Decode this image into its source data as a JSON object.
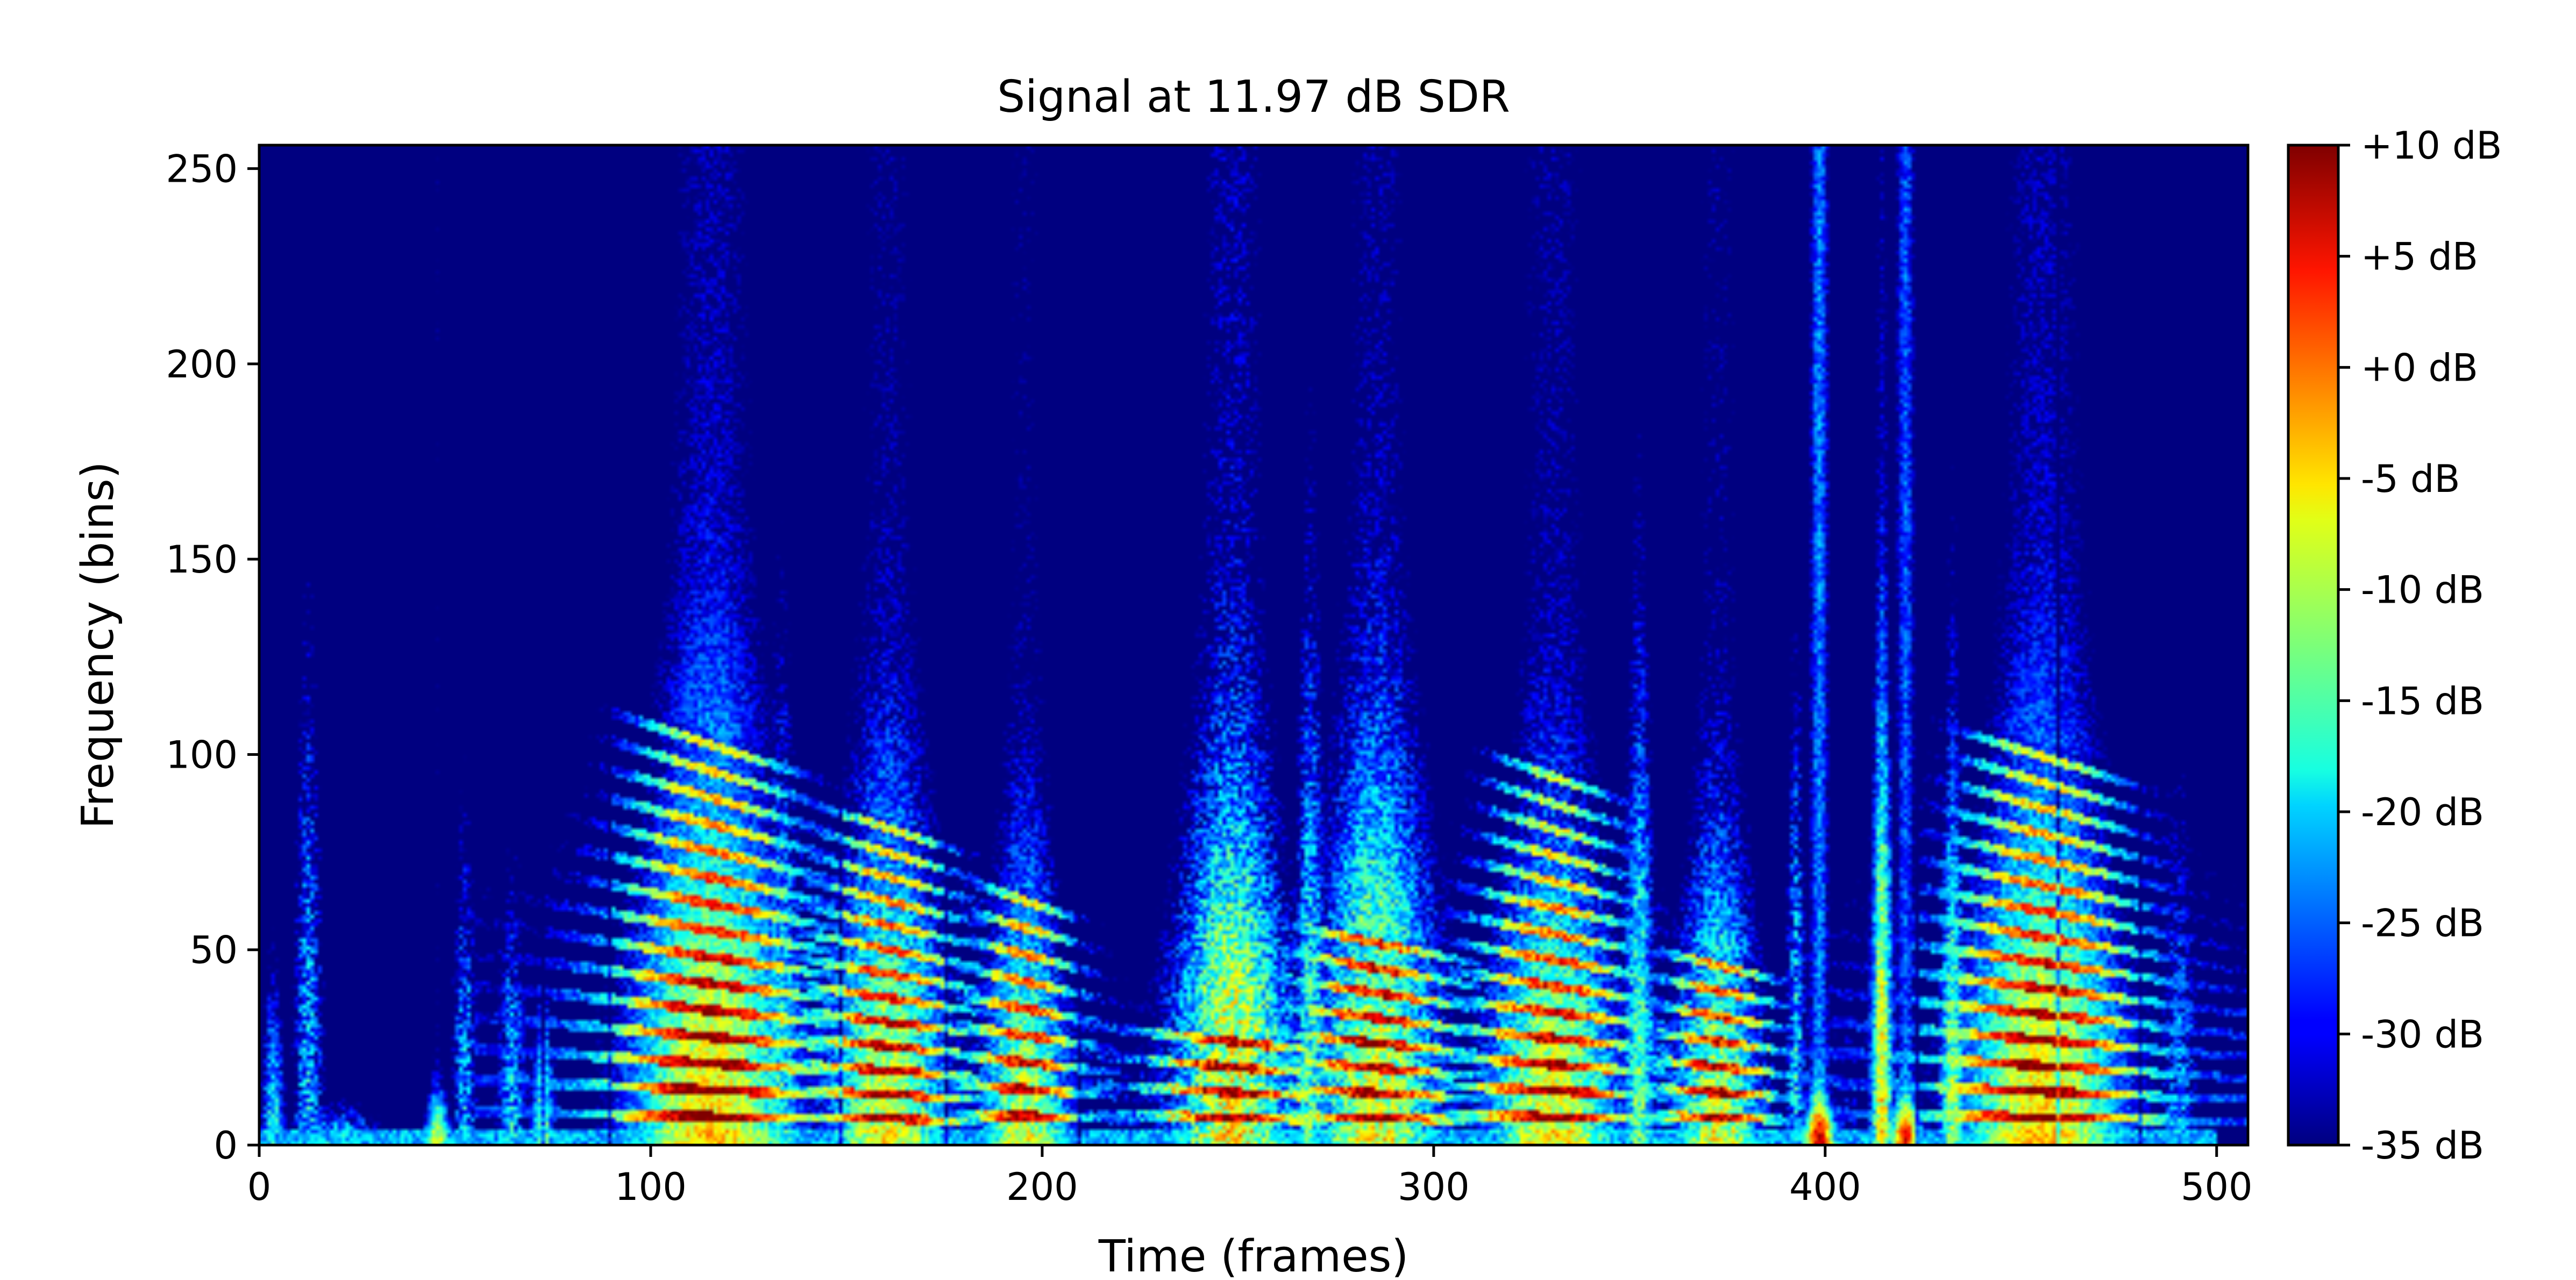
{
  "chart_data": {
    "type": "heatmap",
    "title": "Signal at 11.97 dB SDR",
    "xlabel": "Time (frames)",
    "ylabel": "Frequency (bins)",
    "xlim": [
      0,
      508
    ],
    "ylim": [
      0,
      256
    ],
    "x_ticks": [
      {
        "value": 0,
        "label": "0"
      },
      {
        "value": 100,
        "label": "100"
      },
      {
        "value": 200,
        "label": "200"
      },
      {
        "value": 300,
        "label": "300"
      },
      {
        "value": 400,
        "label": "400"
      },
      {
        "value": 500,
        "label": "500"
      }
    ],
    "y_ticks": [
      {
        "value": 0,
        "label": "0"
      },
      {
        "value": 50,
        "label": "50"
      },
      {
        "value": 100,
        "label": "100"
      },
      {
        "value": 150,
        "label": "150"
      },
      {
        "value": 200,
        "label": "200"
      },
      {
        "value": 250,
        "label": "250"
      }
    ],
    "colormap": "jet",
    "colorbar": {
      "range_db": [
        -35,
        10
      ],
      "ticks": [
        {
          "value": 10,
          "label": "+10 dB"
        },
        {
          "value": 5,
          "label": "+5 dB"
        },
        {
          "value": 0,
          "label": "+0 dB"
        },
        {
          "value": -5,
          "label": "-5 dB"
        },
        {
          "value": -10,
          "label": "-10 dB"
        },
        {
          "value": -15,
          "label": "-15 dB"
        },
        {
          "value": -20,
          "label": "-20 dB"
        },
        {
          "value": -25,
          "label": "-25 dB"
        },
        {
          "value": -30,
          "label": "-30 dB"
        },
        {
          "value": -35,
          "label": "-35 dB"
        }
      ]
    },
    "events": [
      {
        "t": 3,
        "dur": 6,
        "f0": 0,
        "harm": 0,
        "top": 75,
        "level": -18,
        "noise": 0.6
      },
      {
        "t": 12,
        "dur": 8,
        "f0": 0,
        "harm": 0,
        "top": 225,
        "level": -22,
        "noise": 0.8
      },
      {
        "t": 20,
        "dur": 25,
        "f0": 0,
        "harm": 0,
        "top": 18,
        "level": -20,
        "noise": 0.6
      },
      {
        "t": 45,
        "dur": 6,
        "f0": 0,
        "harm": 0,
        "top": 22,
        "level": -8,
        "noise": 0.4
      },
      {
        "t": 52,
        "dur": 7,
        "f0": 0,
        "harm": 0,
        "top": 150,
        "level": -23,
        "noise": 0.8
      },
      {
        "t": 64,
        "dur": 8,
        "f0": 0,
        "harm": 0,
        "top": 120,
        "level": -22,
        "noise": 0.8
      },
      {
        "t": 72,
        "dur": 6,
        "f0": 0,
        "harm": 0,
        "top": 62,
        "level": -14,
        "noise": 0.5
      },
      {
        "t": 115,
        "dur": 38,
        "f0": 6.8,
        "harm": 15,
        "top": 160,
        "level": 8,
        "noise": 0.4
      },
      {
        "t": 133,
        "dur": 10,
        "f0": 0,
        "harm": 0,
        "top": 200,
        "level": -18,
        "noise": 0.7
      },
      {
        "t": 160,
        "dur": 30,
        "f0": 6.2,
        "harm": 13,
        "top": 140,
        "level": 5,
        "noise": 0.5
      },
      {
        "t": 195,
        "dur": 22,
        "f0": 6.9,
        "harm": 9,
        "top": 115,
        "level": 4,
        "noise": 0.5
      },
      {
        "t": 248,
        "dur": 28,
        "f0": 6.5,
        "harm": 4,
        "top": 145,
        "level": 6,
        "noise": 0.7
      },
      {
        "t": 268,
        "dur": 8,
        "f0": 0,
        "harm": 0,
        "top": 230,
        "level": -16,
        "noise": 0.7
      },
      {
        "t": 285,
        "dur": 30,
        "f0": 6.4,
        "harm": 8,
        "top": 160,
        "level": 5,
        "noise": 0.6
      },
      {
        "t": 330,
        "dur": 32,
        "f0": 6.7,
        "harm": 14,
        "top": 130,
        "level": 6,
        "noise": 0.5
      },
      {
        "t": 352,
        "dur": 8,
        "f0": 0,
        "harm": 0,
        "top": 205,
        "level": -14,
        "noise": 0.6
      },
      {
        "t": 372,
        "dur": 22,
        "f0": 6.5,
        "harm": 7,
        "top": 115,
        "level": 4,
        "noise": 0.6
      },
      {
        "t": 392,
        "dur": 5,
        "f0": 0,
        "harm": 0,
        "top": 210,
        "level": -20,
        "noise": 0.8
      },
      {
        "t": 398,
        "dur": 6,
        "f0": 0,
        "harm": 0,
        "top": 18,
        "level": 6,
        "noise": 0.4
      },
      {
        "t": 414,
        "dur": 5,
        "f0": 0,
        "harm": 0,
        "top": 190,
        "level": -6,
        "noise": 0.5
      },
      {
        "t": 420,
        "dur": 6,
        "f0": 0,
        "harm": 0,
        "top": 18,
        "level": 4,
        "noise": 0.4
      },
      {
        "t": 432,
        "dur": 6,
        "f0": 0,
        "harm": 0,
        "top": 170,
        "level": -12,
        "noise": 0.6
      },
      {
        "t": 455,
        "dur": 38,
        "f0": 6.6,
        "harm": 15,
        "top": 150,
        "level": 8,
        "noise": 0.4
      },
      {
        "t": 490,
        "dur": 10,
        "f0": 0,
        "harm": 0,
        "top": 160,
        "level": -24,
        "noise": 0.8
      }
    ]
  }
}
